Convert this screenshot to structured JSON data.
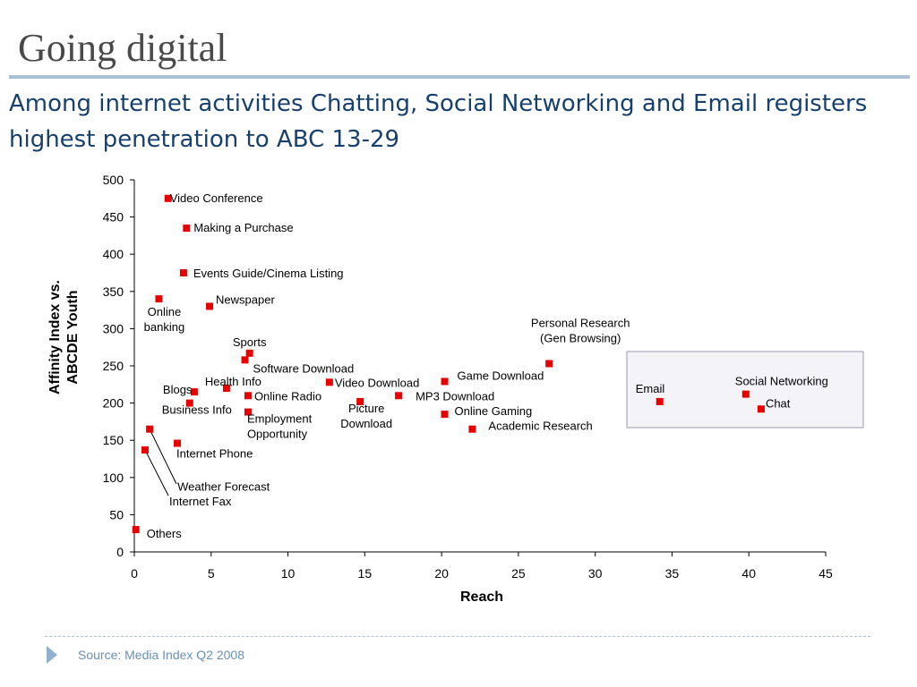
{
  "slide": {
    "title": "Going digital",
    "subtitle": "Among internet activities Chatting, Social Networking  and Email registers highest penetration to ABC 13-29",
    "source": "Source: Media Index Q2 2008"
  },
  "chart_data": {
    "type": "scatter",
    "xlabel": "Reach",
    "ylabel_lines": [
      "Affinity Index vs.",
      "ABCDE Youth"
    ],
    "xlim": [
      0,
      45
    ],
    "ylim": [
      0,
      500
    ],
    "xticks": [
      0,
      5,
      10,
      15,
      20,
      25,
      30,
      35,
      40,
      45
    ],
    "yticks": [
      0,
      50,
      100,
      150,
      200,
      250,
      300,
      350,
      400,
      450,
      500
    ],
    "grid": false,
    "marker_color": "#e60000",
    "highlight_box": {
      "contains": [
        "Email",
        "Social Networking",
        "Chat"
      ],
      "fill": "#f3f3f8",
      "stroke": "#9a9ab0"
    },
    "points": [
      {
        "label": [
          "Video Conference"
        ],
        "x": 2.2,
        "y": 475
      },
      {
        "label": [
          "Making a Purchase"
        ],
        "x": 3.4,
        "y": 435
      },
      {
        "label": [
          "Events Guide/Cinema Listing"
        ],
        "x": 3.2,
        "y": 375
      },
      {
        "label": [
          "Online",
          "banking"
        ],
        "x": 1.6,
        "y": 340
      },
      {
        "label": [
          "Newspaper"
        ],
        "x": 4.9,
        "y": 330
      },
      {
        "label": [
          "Sports"
        ],
        "x": 7.5,
        "y": 267
      },
      {
        "label": [
          "Software Download"
        ],
        "x": 7.2,
        "y": 258
      },
      {
        "label": [
          "Health Info"
        ],
        "x": 6.0,
        "y": 220
      },
      {
        "label": [
          "Blogs"
        ],
        "x": 3.9,
        "y": 215
      },
      {
        "label": [
          "Online Radio"
        ],
        "x": 7.4,
        "y": 210
      },
      {
        "label": [
          "Business Info"
        ],
        "x": 3.6,
        "y": 200
      },
      {
        "label": [
          "Employment",
          "Opportunity"
        ],
        "x": 7.4,
        "y": 188
      },
      {
        "label": [
          "Video  Download"
        ],
        "x": 12.7,
        "y": 228
      },
      {
        "label": [
          "Picture",
          "Download"
        ],
        "x": 14.7,
        "y": 202
      },
      {
        "label": [
          "Game Download"
        ],
        "x": 20.2,
        "y": 229
      },
      {
        "label": [
          "MP3 Download"
        ],
        "x": 17.2,
        "y": 210
      },
      {
        "label": [
          "Online Gaming"
        ],
        "x": 20.2,
        "y": 185
      },
      {
        "label": [
          "Academic Research"
        ],
        "x": 22.0,
        "y": 165
      },
      {
        "label": [
          "Personal Research",
          "(Gen Browsing)"
        ],
        "x": 27.0,
        "y": 253
      },
      {
        "label": [
          "Email"
        ],
        "x": 34.2,
        "y": 202
      },
      {
        "label": [
          "Social Networking"
        ],
        "x": 39.8,
        "y": 212
      },
      {
        "label": [
          "Chat"
        ],
        "x": 40.8,
        "y": 192
      },
      {
        "label": [
          "Internet Phone"
        ],
        "x": 2.8,
        "y": 146
      },
      {
        "label": [
          "Weather Forecast"
        ],
        "x": 1.0,
        "y": 165
      },
      {
        "label": [
          "Internet Fax"
        ],
        "x": 0.7,
        "y": 137
      },
      {
        "label": [
          "Others"
        ],
        "x": 0.1,
        "y": 30
      }
    ]
  }
}
